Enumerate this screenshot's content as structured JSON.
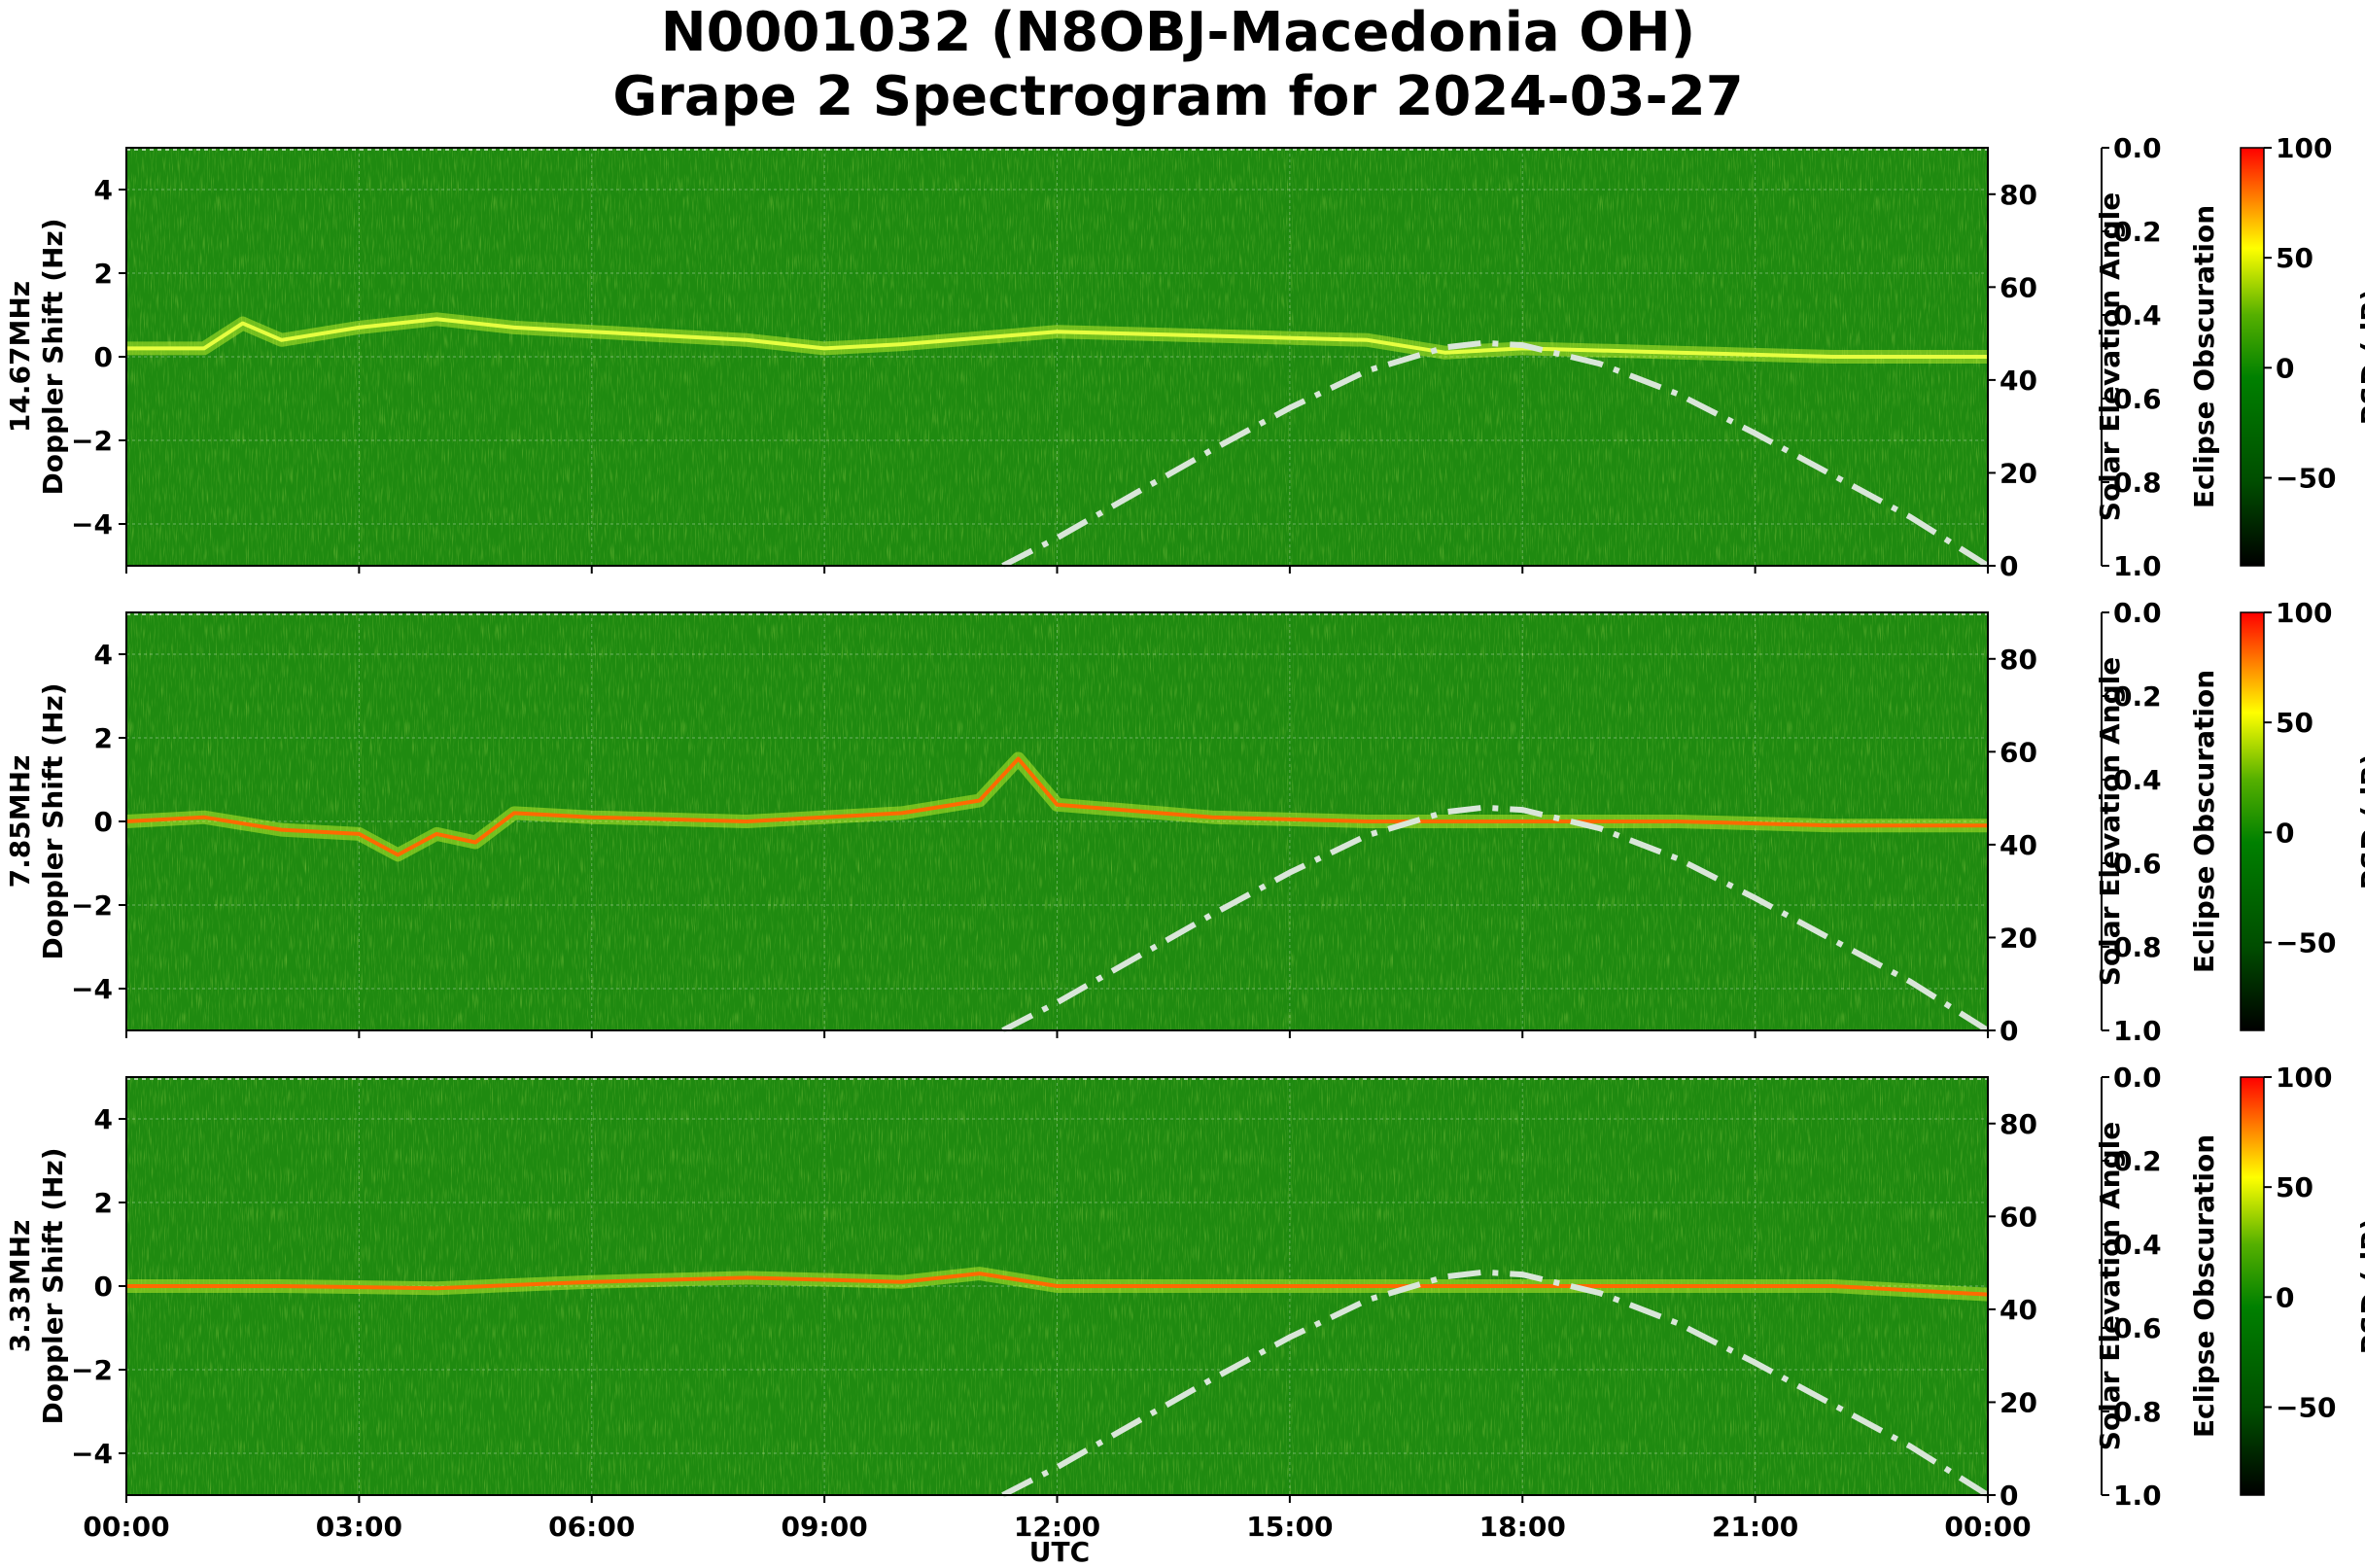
{
  "title": {
    "line1": "N0001032 (N8OBJ-Macedonia OH)",
    "line2": "Grape 2 Spectrogram for 2024-03-27"
  },
  "xaxis": {
    "label": "UTC",
    "ticks": [
      "00:00",
      "03:00",
      "06:00",
      "09:00",
      "12:00",
      "15:00",
      "18:00",
      "21:00",
      "00:00"
    ]
  },
  "colors": {
    "cmap": [
      "#000000",
      "#006400",
      "#008000",
      "#ffff00",
      "#ff0000"
    ],
    "curve": "#d9e6d9"
  },
  "chart_data": [
    {
      "type": "heatmap",
      "band": "14.67MHz",
      "ylabel": "14.67MHz\nDoppler Shift (Hz)",
      "ylabel_lines": [
        "14.67MHz",
        "Doppler Shift (Hz)"
      ],
      "ylim": [
        -5,
        5
      ],
      "yticks": [
        4,
        2,
        0,
        -2,
        -4
      ],
      "ytick_labels": [
        "4",
        "2",
        "0",
        "−2",
        "−4"
      ],
      "xlim_hours": [
        0,
        24
      ],
      "right_axis": {
        "label": "Solar Elevation Angle",
        "ylim": [
          0,
          90
        ],
        "ticks": [
          "0",
          "20",
          "40",
          "60",
          "80"
        ]
      },
      "eclipse_axis": {
        "label": "Eclipse Obscuration",
        "ylim": [
          1.0,
          0.0
        ],
        "ticks": [
          "0.0",
          "0.2",
          "0.4",
          "0.6",
          "0.8",
          "1.0"
        ]
      },
      "colorbar": {
        "label": "PSD (dB)",
        "range": [
          -90,
          100
        ],
        "ticks": [
          "100",
          "50",
          "0",
          "−50"
        ]
      },
      "solar_elevation": {
        "x_hours": [
          11.3,
          12,
          13,
          14,
          15,
          16,
          17,
          17.5,
          18,
          19,
          20,
          21,
          22,
          23,
          24
        ],
        "values": [
          0,
          6,
          15.5,
          25,
          34,
          42,
          47,
          48,
          47.5,
          43.5,
          37,
          28.5,
          19.5,
          10.5,
          0
        ]
      },
      "signal_trace": {
        "x_hours": [
          0,
          1,
          1.5,
          2,
          3,
          4,
          5,
          6,
          8,
          9,
          10,
          12,
          14,
          16,
          17,
          18,
          20,
          22,
          24
        ],
        "values": [
          0.2,
          0.2,
          0.8,
          0.4,
          0.7,
          0.9,
          0.7,
          0.6,
          0.4,
          0.2,
          0.3,
          0.6,
          0.5,
          0.4,
          0.1,
          0.2,
          0.1,
          0.0,
          0.0
        ]
      }
    },
    {
      "type": "heatmap",
      "band": "7.85MHz",
      "ylabel": "7.85MHz\nDoppler Shift (Hz)",
      "ylabel_lines": [
        "7.85MHz",
        "Doppler Shift (Hz)"
      ],
      "ylim": [
        -5,
        5
      ],
      "yticks": [
        4,
        2,
        0,
        -2,
        -4
      ],
      "ytick_labels": [
        "4",
        "2",
        "0",
        "−2",
        "−4"
      ],
      "xlim_hours": [
        0,
        24
      ],
      "right_axis": {
        "label": "Solar Elevation Angle",
        "ylim": [
          0,
          90
        ],
        "ticks": [
          "0",
          "20",
          "40",
          "60",
          "80"
        ]
      },
      "eclipse_axis": {
        "label": "Eclipse Obscuration",
        "ylim": [
          1.0,
          0.0
        ],
        "ticks": [
          "0.0",
          "0.2",
          "0.4",
          "0.6",
          "0.8",
          "1.0"
        ]
      },
      "colorbar": {
        "label": "PSD (dB)",
        "range": [
          -90,
          100
        ],
        "ticks": [
          "100",
          "50",
          "0",
          "−50"
        ]
      },
      "solar_elevation": {
        "x_hours": [
          11.3,
          12,
          13,
          14,
          15,
          16,
          17,
          17.5,
          18,
          19,
          20,
          21,
          22,
          23,
          24
        ],
        "values": [
          0,
          6,
          15.5,
          25,
          34,
          42,
          47,
          48,
          47.5,
          43.5,
          37,
          28.5,
          19.5,
          10.5,
          0
        ]
      },
      "signal_trace": {
        "x_hours": [
          0,
          1,
          2,
          3,
          3.5,
          4,
          4.5,
          5,
          6,
          8,
          10,
          11,
          11.5,
          12,
          14,
          16,
          18,
          20,
          22,
          24
        ],
        "values": [
          0.0,
          0.1,
          -0.2,
          -0.3,
          -0.8,
          -0.3,
          -0.5,
          0.2,
          0.1,
          0.0,
          0.2,
          0.5,
          1.5,
          0.4,
          0.1,
          0.0,
          0.0,
          0.0,
          -0.1,
          -0.1
        ]
      }
    },
    {
      "type": "heatmap",
      "band": "3.33MHz",
      "ylabel": "3.33MHz\nDoppler Shift (Hz)",
      "ylabel_lines": [
        "3.33MHz",
        "Doppler Shift (Hz)"
      ],
      "ylim": [
        -5,
        5
      ],
      "yticks": [
        4,
        2,
        0,
        -2,
        -4
      ],
      "ytick_labels": [
        "4",
        "2",
        "0",
        "−2",
        "−4"
      ],
      "xlim_hours": [
        0,
        24
      ],
      "right_axis": {
        "label": "Solar Elevation Angle",
        "ylim": [
          0,
          90
        ],
        "ticks": [
          "0",
          "20",
          "40",
          "60",
          "80"
        ]
      },
      "eclipse_axis": {
        "label": "Eclipse Obscuration",
        "ylim": [
          1.0,
          0.0
        ],
        "ticks": [
          "0.0",
          "0.2",
          "0.4",
          "0.6",
          "0.8",
          "1.0"
        ]
      },
      "colorbar": {
        "label": "PSD (dB)",
        "range": [
          -90,
          100
        ],
        "ticks": [
          "100",
          "50",
          "0",
          "−50"
        ]
      },
      "solar_elevation": {
        "x_hours": [
          11.3,
          12,
          13,
          14,
          15,
          16,
          17,
          17.5,
          18,
          19,
          20,
          21,
          22,
          23,
          24
        ],
        "values": [
          0,
          6,
          15.5,
          25,
          34,
          42,
          47,
          48,
          47.5,
          43.5,
          37,
          28.5,
          19.5,
          10.5,
          0
        ]
      },
      "signal_trace": {
        "x_hours": [
          0,
          2,
          4,
          6,
          8,
          10,
          11,
          12,
          14,
          16,
          18,
          20,
          22,
          24
        ],
        "values": [
          0.0,
          0.0,
          -0.05,
          0.1,
          0.2,
          0.1,
          0.3,
          0.0,
          0.0,
          0.0,
          0.0,
          0.0,
          0.0,
          -0.2
        ]
      }
    }
  ]
}
